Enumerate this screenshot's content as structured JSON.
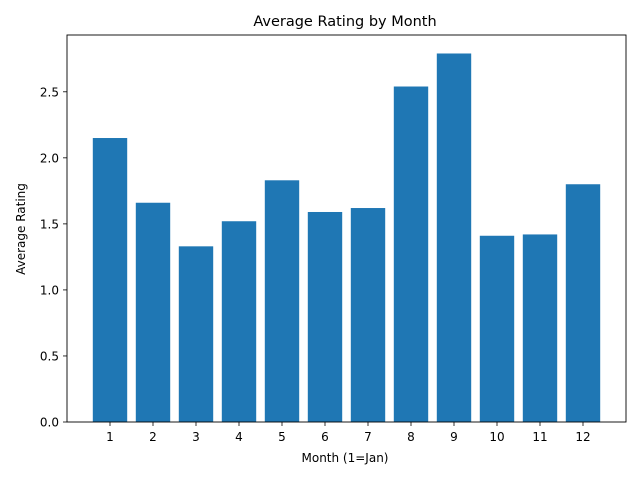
{
  "chart_data": {
    "type": "bar",
    "title": "Average Rating by Month",
    "xlabel": "Month (1=Jan)",
    "ylabel": "Average Rating",
    "categories": [
      "1",
      "2",
      "3",
      "4",
      "5",
      "6",
      "7",
      "8",
      "9",
      "10",
      "11",
      "12"
    ],
    "values": [
      2.15,
      1.66,
      1.33,
      1.52,
      1.83,
      1.59,
      1.62,
      2.54,
      2.79,
      1.41,
      1.42,
      1.8
    ],
    "yticks": [
      "0.0",
      "0.5",
      "1.0",
      "1.5",
      "2.0",
      "2.5"
    ],
    "ylim": [
      0,
      2.93
    ],
    "grid": false,
    "legend": "none",
    "bar_color": "#1f77b4"
  }
}
